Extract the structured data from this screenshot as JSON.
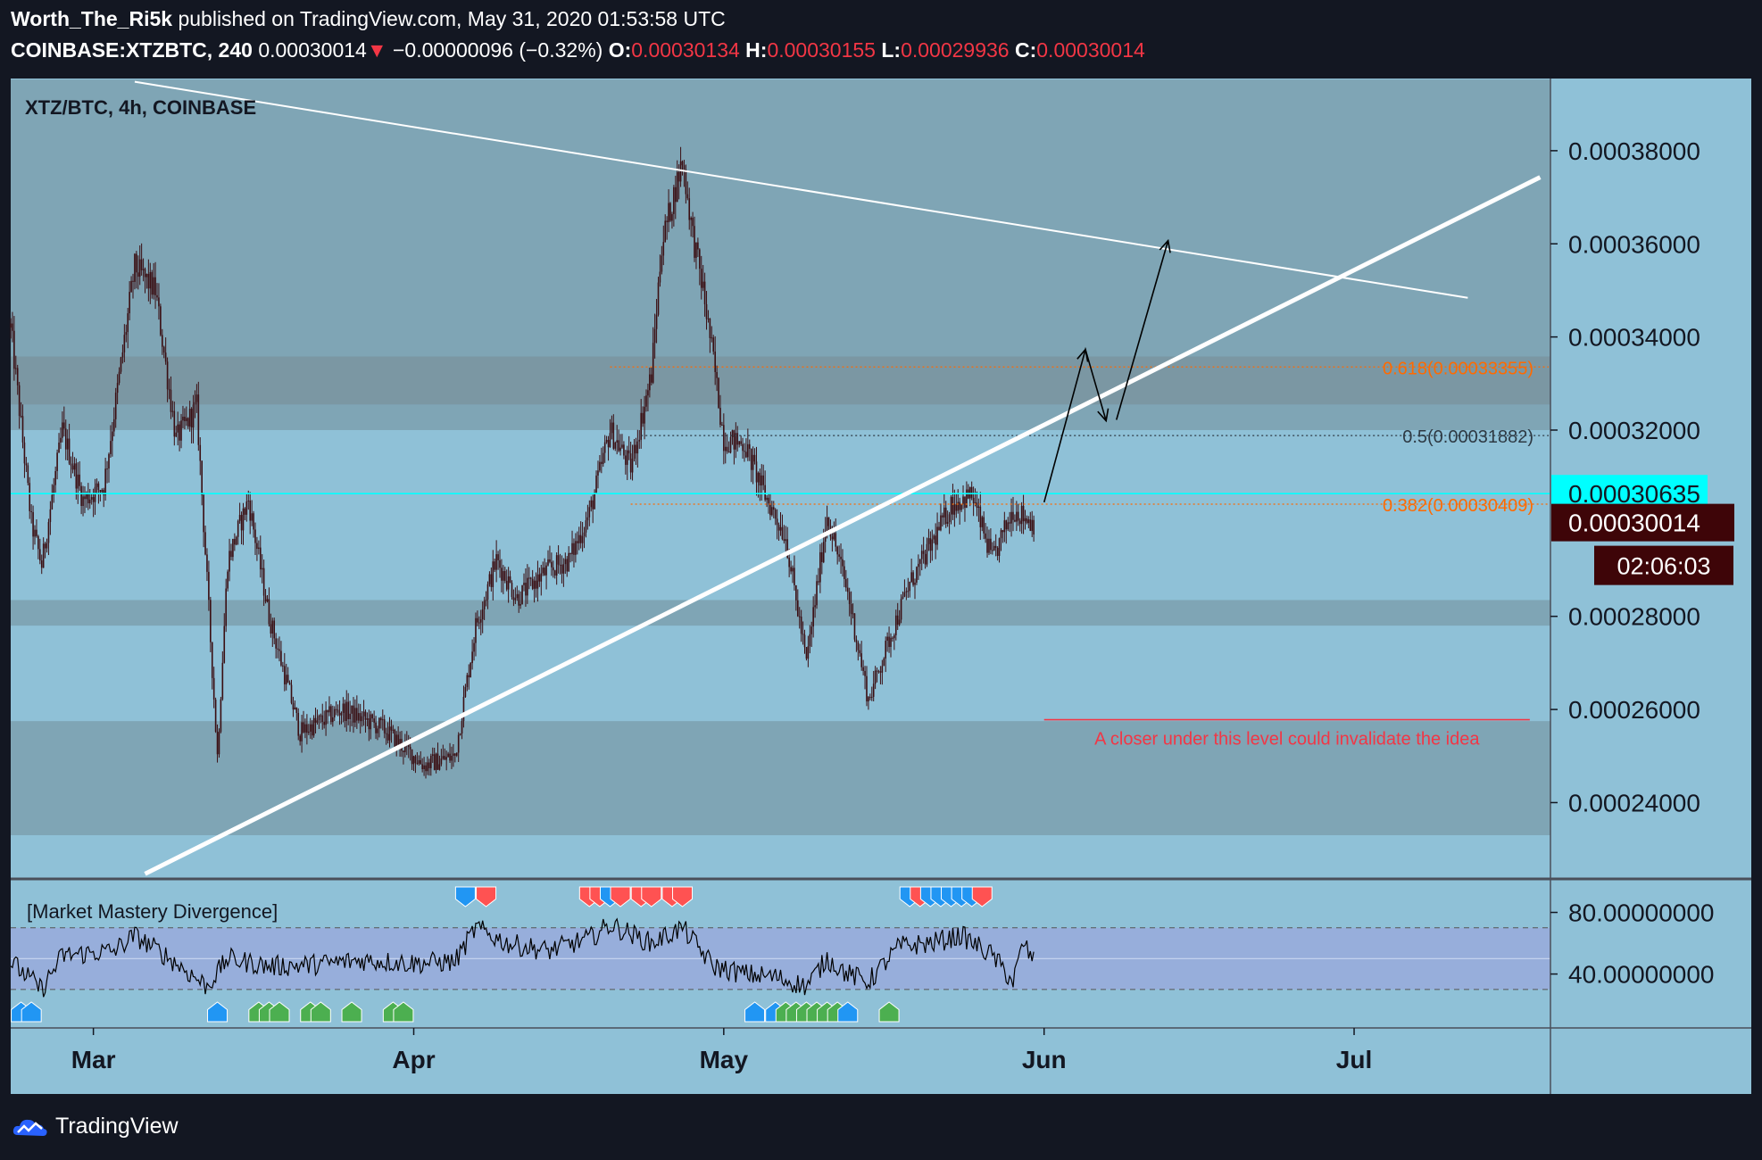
{
  "header": {
    "author": "Worth_The_Ri5k",
    "published_text": "published on TradingView.com, May 31, 2020 01:53:58 UTC",
    "symbol": "COINBASE:XTZBTC, 240",
    "last": "0.00030014",
    "change_arrow": "▼",
    "change": "−0.00000096 (−0.32%)",
    "o_label": "O:",
    "o_value": "0.00030134",
    "h_label": "H:",
    "h_value": "0.00030155",
    "l_label": "L:",
    "l_value": "0.00029936",
    "c_label": "C:",
    "c_value": "0.00030014"
  },
  "colors": {
    "background": "#131722",
    "pane": "#8fc1d7",
    "zone": "#7fa5b5",
    "zone_dark": "#7b97a3",
    "candle": "#3a0e12",
    "fib_orange": "#ff6a00",
    "fib_dark": "#2e3a44",
    "cyan": "#00ffff",
    "red": "#f23645",
    "bull_marker": "#4caf50",
    "bear_marker": "#ff5252",
    "div_marker": "#2196f3",
    "osc_band": "#97aedb"
  },
  "chart_data": [
    {
      "type": "candlestick",
      "title": "XTZ/BTC, 4h, COINBASE",
      "x": "2020-02-22 to 2020-07-20 (4h candles)",
      "xticks": [
        "Mar",
        "Apr",
        "May",
        "Jun",
        "Jul"
      ],
      "xtick_dates": [
        "2020-03-01",
        "2020-04-01",
        "2020-05-01",
        "2020-06-01",
        "2020-07-01"
      ],
      "yticks": [
        "0.00038000",
        "0.00036000",
        "0.00034000",
        "0.00032000",
        "0.00028000",
        "0.00026000",
        "0.00024000"
      ],
      "ylim": [
        0.0002238,
        0.0003955
      ],
      "price_path": [
        {
          "date": "2020-02-22",
          "price": 0.000342
        },
        {
          "date": "2020-02-24",
          "price": 0.0003
        },
        {
          "date": "2020-02-25",
          "price": 0.000291
        },
        {
          "date": "2020-02-27",
          "price": 0.00032
        },
        {
          "date": "2020-02-29",
          "price": 0.000305
        },
        {
          "date": "2020-03-02",
          "price": 0.000308
        },
        {
          "date": "2020-03-05",
          "price": 0.000355
        },
        {
          "date": "2020-03-07",
          "price": 0.00035
        },
        {
          "date": "2020-03-09",
          "price": 0.000318
        },
        {
          "date": "2020-03-11",
          "price": 0.000325
        },
        {
          "date": "2020-03-13",
          "price": 0.00025
        },
        {
          "date": "2020-03-14",
          "price": 0.000292
        },
        {
          "date": "2020-03-16",
          "price": 0.000305
        },
        {
          "date": "2020-03-18",
          "price": 0.00028
        },
        {
          "date": "2020-03-21",
          "price": 0.000255
        },
        {
          "date": "2020-03-25",
          "price": 0.00026
        },
        {
          "date": "2020-03-29",
          "price": 0.000256
        },
        {
          "date": "2020-04-02",
          "price": 0.000248
        },
        {
          "date": "2020-04-05",
          "price": 0.00025
        },
        {
          "date": "2020-04-07",
          "price": 0.000278
        },
        {
          "date": "2020-04-09",
          "price": 0.000292
        },
        {
          "date": "2020-04-11",
          "price": 0.000284
        },
        {
          "date": "2020-04-14",
          "price": 0.00029
        },
        {
          "date": "2020-04-16",
          "price": 0.000292
        },
        {
          "date": "2020-04-18",
          "price": 0.000302
        },
        {
          "date": "2020-04-20",
          "price": 0.00032
        },
        {
          "date": "2020-04-22",
          "price": 0.000312
        },
        {
          "date": "2020-04-24",
          "price": 0.000332
        },
        {
          "date": "2020-04-25",
          "price": 0.00036
        },
        {
          "date": "2020-04-27",
          "price": 0.000378
        },
        {
          "date": "2020-04-28",
          "price": 0.000362
        },
        {
          "date": "2020-04-29",
          "price": 0.00035
        },
        {
          "date": "2020-04-30",
          "price": 0.000335
        },
        {
          "date": "2020-05-01",
          "price": 0.000318
        },
        {
          "date": "2020-05-03",
          "price": 0.000317
        },
        {
          "date": "2020-05-05",
          "price": 0.000306
        },
        {
          "date": "2020-05-07",
          "price": 0.000297
        },
        {
          "date": "2020-05-09",
          "price": 0.00027
        },
        {
          "date": "2020-05-11",
          "price": 0.000302
        },
        {
          "date": "2020-05-13",
          "price": 0.000285
        },
        {
          "date": "2020-05-15",
          "price": 0.000262
        },
        {
          "date": "2020-05-17",
          "price": 0.000275
        },
        {
          "date": "2020-05-19",
          "price": 0.000287
        },
        {
          "date": "2020-05-21",
          "price": 0.000295
        },
        {
          "date": "2020-05-23",
          "price": 0.000304
        },
        {
          "date": "2020-05-25",
          "price": 0.000306
        },
        {
          "date": "2020-05-27",
          "price": 0.000292
        },
        {
          "date": "2020-05-29",
          "price": 0.000303
        },
        {
          "date": "2020-05-31",
          "price": 0.0003
        }
      ],
      "support_resistance_zones": [
        {
          "from": 0.00032,
          "to": 0.0003953
        },
        {
          "from": 0.0003255,
          "to": 0.0003358
        },
        {
          "from": 0.000278,
          "to": 0.0002835
        },
        {
          "from": 0.000233,
          "to": 0.0002575
        }
      ],
      "fib_levels": [
        {
          "label": "0.618(0.00033355)",
          "value": 0.00033355,
          "from_date": "2020-04-20",
          "color": "#ff6a00"
        },
        {
          "label": "0.5(0.00031882)",
          "value": 0.00031882,
          "from_date": "2020-04-23",
          "color": "#2e3a44"
        },
        {
          "label": "0.382(0.00030409)",
          "value": 0.00030409,
          "from_date": "2020-04-22",
          "color": "#ff6a00"
        }
      ],
      "horizontal_line": {
        "value": 0.00030635
      },
      "descending_trendline": [
        {
          "date": "2020-03-05",
          "price": 0.0003948
        },
        {
          "date": "2020-07-12",
          "price": 0.0003484
        }
      ],
      "ascending_trendline": [
        {
          "date": "2020-03-06",
          "price": 0.0002247
        },
        {
          "date": "2020-07-19",
          "price": 0.0003743
        }
      ],
      "projection_arrows": [
        [
          {
            "date": "2020-06-01",
            "price": 0.0003045
          },
          {
            "date": "2020-06-05",
            "price": 0.0003373
          },
          {
            "date": "2020-06-07",
            "price": 0.000322
          }
        ],
        [
          {
            "date": "2020-06-08",
            "price": 0.0003222
          },
          {
            "date": "2020-06-13",
            "price": 0.0003607
          }
        ]
      ],
      "invalidation": {
        "value": 0.0002578,
        "from_date": "2020-06-01",
        "to_date": "2020-07-18",
        "label": "A closer under this level could invalidate the idea"
      },
      "price_labels": {
        "line_value": "0.00030635",
        "last_value": "0.00030014",
        "countdown": "02:06:03"
      }
    },
    {
      "type": "line",
      "title": "[Market Mastery Divergence]",
      "yticks": [
        "80.00000000",
        "40.00000000"
      ],
      "ylim": [
        5,
        100
      ],
      "band": [
        30,
        70
      ],
      "midline": 50,
      "series_path": [
        {
          "date": "2020-02-22",
          "value": 48
        },
        {
          "date": "2020-02-25",
          "value": 30
        },
        {
          "date": "2020-02-27",
          "value": 52
        },
        {
          "date": "2020-03-03",
          "value": 55
        },
        {
          "date": "2020-03-05",
          "value": 65
        },
        {
          "date": "2020-03-08",
          "value": 52
        },
        {
          "date": "2020-03-12",
          "value": 32
        },
        {
          "date": "2020-03-14",
          "value": 50
        },
        {
          "date": "2020-03-18",
          "value": 45
        },
        {
          "date": "2020-03-22",
          "value": 46
        },
        {
          "date": "2020-03-27",
          "value": 49
        },
        {
          "date": "2020-04-01",
          "value": 47
        },
        {
          "date": "2020-04-05",
          "value": 48
        },
        {
          "date": "2020-04-07",
          "value": 70
        },
        {
          "date": "2020-04-10",
          "value": 60
        },
        {
          "date": "2020-04-14",
          "value": 55
        },
        {
          "date": "2020-04-18",
          "value": 63
        },
        {
          "date": "2020-04-20",
          "value": 72
        },
        {
          "date": "2020-04-24",
          "value": 60
        },
        {
          "date": "2020-04-27",
          "value": 70
        },
        {
          "date": "2020-04-30",
          "value": 45
        },
        {
          "date": "2020-05-03",
          "value": 40
        },
        {
          "date": "2020-05-06",
          "value": 38
        },
        {
          "date": "2020-05-09",
          "value": 32
        },
        {
          "date": "2020-05-11",
          "value": 50
        },
        {
          "date": "2020-05-13",
          "value": 40
        },
        {
          "date": "2020-05-15",
          "value": 35
        },
        {
          "date": "2020-05-18",
          "value": 58
        },
        {
          "date": "2020-05-21",
          "value": 60
        },
        {
          "date": "2020-05-24",
          "value": 65
        },
        {
          "date": "2020-05-27",
          "value": 52
        },
        {
          "date": "2020-05-29",
          "value": 35
        },
        {
          "date": "2020-05-30",
          "value": 60
        },
        {
          "date": "2020-05-31",
          "value": 48
        }
      ],
      "markers": [
        {
          "date": "2020-02-23",
          "type": "bullish-divergence",
          "color": "#2196f3",
          "position": "below"
        },
        {
          "date": "2020-02-24",
          "type": "bullish-divergence",
          "color": "#2196f3",
          "position": "below"
        },
        {
          "date": "2020-03-13",
          "type": "bullish-divergence",
          "color": "#2196f3",
          "position": "below"
        },
        {
          "date": "2020-03-17",
          "type": "bullish",
          "color": "#4caf50",
          "position": "below"
        },
        {
          "date": "2020-03-18",
          "type": "bullish",
          "color": "#4caf50",
          "position": "below"
        },
        {
          "date": "2020-03-19",
          "type": "bullish",
          "color": "#4caf50",
          "position": "below"
        },
        {
          "date": "2020-03-22",
          "type": "bullish",
          "color": "#4caf50",
          "position": "below"
        },
        {
          "date": "2020-03-23",
          "type": "bullish",
          "color": "#4caf50",
          "position": "below"
        },
        {
          "date": "2020-03-26",
          "type": "bullish",
          "color": "#4caf50",
          "position": "below"
        },
        {
          "date": "2020-03-30",
          "type": "bullish",
          "color": "#4caf50",
          "position": "below"
        },
        {
          "date": "2020-03-31",
          "type": "bullish",
          "color": "#4caf50",
          "position": "below"
        },
        {
          "date": "2020-04-06",
          "type": "bearish-divergence",
          "color": "#2196f3",
          "position": "above"
        },
        {
          "date": "2020-04-08",
          "type": "bearish",
          "color": "#ff5252",
          "position": "above"
        },
        {
          "date": "2020-04-18",
          "type": "bearish",
          "color": "#ff5252",
          "position": "above"
        },
        {
          "date": "2020-04-19",
          "type": "bearish",
          "color": "#ff5252",
          "position": "above"
        },
        {
          "date": "2020-04-20",
          "type": "bearish-divergence",
          "color": "#2196f3",
          "position": "above"
        },
        {
          "date": "2020-04-21",
          "type": "bearish",
          "color": "#ff5252",
          "position": "above"
        },
        {
          "date": "2020-04-23",
          "type": "bearish",
          "color": "#ff5252",
          "position": "above"
        },
        {
          "date": "2020-04-24",
          "type": "bearish",
          "color": "#ff5252",
          "position": "above"
        },
        {
          "date": "2020-04-26",
          "type": "bearish",
          "color": "#ff5252",
          "position": "above"
        },
        {
          "date": "2020-04-27",
          "type": "bearish",
          "color": "#ff5252",
          "position": "above"
        },
        {
          "date": "2020-05-04",
          "type": "bullish-divergence",
          "color": "#2196f3",
          "position": "below"
        },
        {
          "date": "2020-05-06",
          "type": "bullish-divergence",
          "color": "#2196f3",
          "position": "below"
        },
        {
          "date": "2020-05-07",
          "type": "bullish",
          "color": "#4caf50",
          "position": "below"
        },
        {
          "date": "2020-05-08",
          "type": "bullish",
          "color": "#4caf50",
          "position": "below"
        },
        {
          "date": "2020-05-09",
          "type": "bullish",
          "color": "#4caf50",
          "position": "below"
        },
        {
          "date": "2020-05-10",
          "type": "bullish",
          "color": "#4caf50",
          "position": "below"
        },
        {
          "date": "2020-05-11",
          "type": "bullish",
          "color": "#4caf50",
          "position": "below"
        },
        {
          "date": "2020-05-12",
          "type": "bullish",
          "color": "#4caf50",
          "position": "below"
        },
        {
          "date": "2020-05-13",
          "type": "bullish-divergence",
          "color": "#2196f3",
          "position": "below"
        },
        {
          "date": "2020-05-17",
          "type": "bullish",
          "color": "#4caf50",
          "position": "below"
        },
        {
          "date": "2020-05-19",
          "type": "bearish-divergence",
          "color": "#2196f3",
          "position": "above"
        },
        {
          "date": "2020-05-20",
          "type": "bearish",
          "color": "#ff5252",
          "position": "above"
        },
        {
          "date": "2020-05-21",
          "type": "bearish-divergence",
          "color": "#2196f3",
          "position": "above"
        },
        {
          "date": "2020-05-22",
          "type": "bearish-divergence",
          "color": "#2196f3",
          "position": "above"
        },
        {
          "date": "2020-05-23",
          "type": "bearish-divergence",
          "color": "#2196f3",
          "position": "above"
        },
        {
          "date": "2020-05-24",
          "type": "bearish-divergence",
          "color": "#2196f3",
          "position": "above"
        },
        {
          "date": "2020-05-25",
          "type": "bearish-divergence",
          "color": "#2196f3",
          "position": "above"
        },
        {
          "date": "2020-05-26",
          "type": "bearish",
          "color": "#ff5252",
          "position": "above"
        }
      ]
    }
  ],
  "footer": {
    "brand": "TradingView",
    "logo_icon": "tradingview-cloud-icon"
  }
}
